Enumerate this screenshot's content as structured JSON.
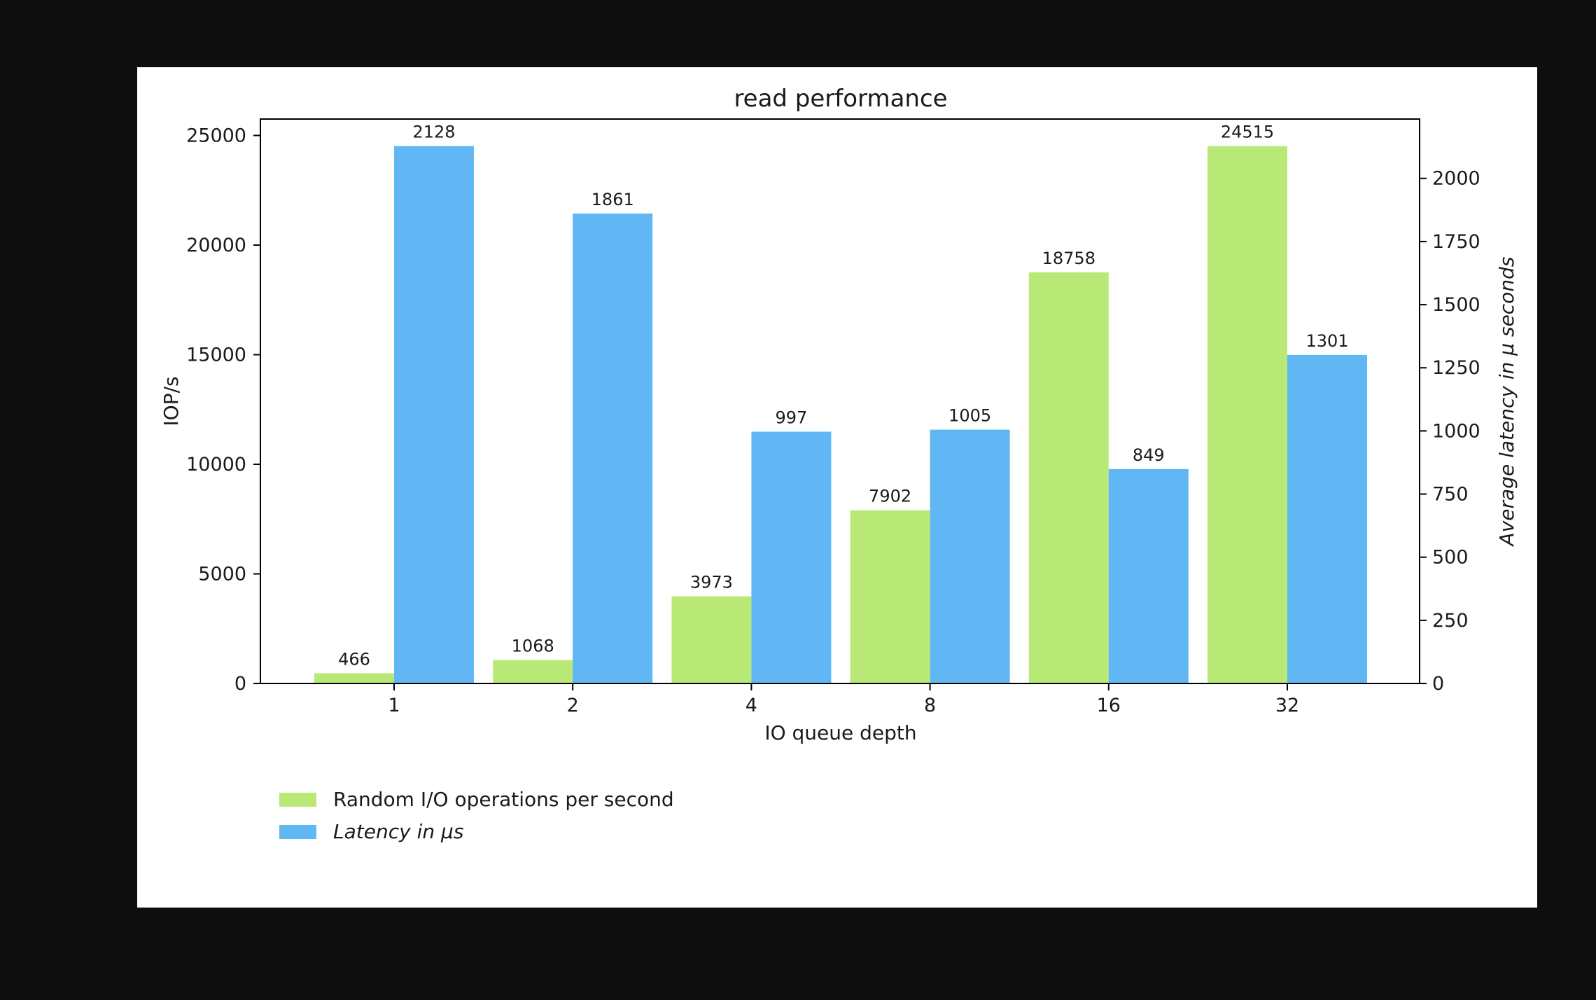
{
  "chart_data": {
    "type": "bar",
    "title": "read performance",
    "xlabel": "IO queue depth",
    "ylabel": "IOP/s",
    "ylabel_right": "Average latency in μ seconds",
    "categories": [
      "1",
      "2",
      "4",
      "8",
      "16",
      "32"
    ],
    "ylim": [
      0,
      25750
    ],
    "ylim_right": [
      0,
      2235
    ],
    "yticks": [
      0,
      5000,
      10000,
      15000,
      20000,
      25000
    ],
    "yticks_right": [
      0,
      250,
      500,
      750,
      1000,
      1250,
      1500,
      1750,
      2000
    ],
    "grid": false,
    "legend_position": "bottom-left, below plot",
    "series": [
      {
        "name": "Random I/O operations per second",
        "axis": "left",
        "color": "#b8e976",
        "values": [
          466,
          1068,
          3973,
          7902,
          18758,
          24515
        ]
      },
      {
        "name": "Latency in μs",
        "axis": "right",
        "color": "#60b7f3",
        "italic": true,
        "values": [
          2128,
          1861,
          997,
          1005,
          849,
          1301
        ]
      }
    ]
  }
}
